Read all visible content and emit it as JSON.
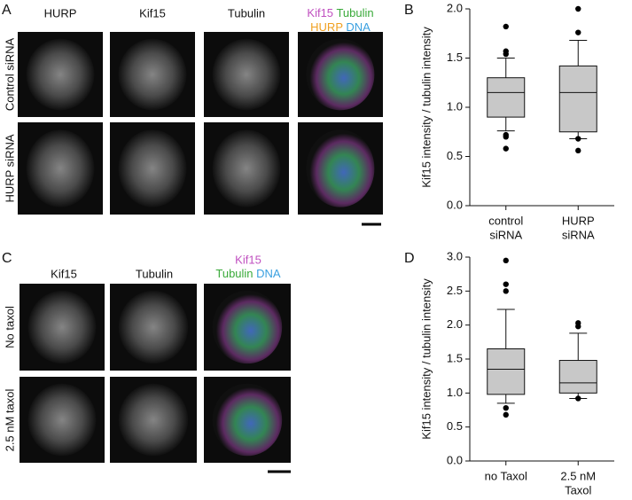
{
  "figure": {
    "panel_a": {
      "letter": "A",
      "columns": [
        "HURP",
        "Kif15",
        "Tubulin"
      ],
      "merge_top": [
        "Kif15",
        "Tubulin"
      ],
      "merge_bottom": [
        "HURP",
        "DNA"
      ],
      "rows": [
        "Control siRNA",
        "HURP siRNA"
      ]
    },
    "panel_c": {
      "letter": "C",
      "columns": [
        "Kif15",
        "Tubulin"
      ],
      "merge_top": [
        "Kif15"
      ],
      "merge_bottom": [
        "Tubulin",
        "DNA"
      ],
      "rows": [
        "No taxol",
        "2.5 nM taxol"
      ]
    },
    "letters": [
      "B",
      "D"
    ]
  },
  "chart_data": [
    {
      "type": "box",
      "ylabel": "Kif15 intensity / tubulin intensity",
      "categories": [
        [
          "control",
          "siRNA"
        ],
        [
          "HURP",
          "siRNA"
        ]
      ],
      "color": "#c8c8c8",
      "ylim": [
        0,
        2
      ],
      "yticks": [
        {
          "value": 0,
          "label": "0.0"
        },
        {
          "value": 0.5,
          "label": "0.5"
        },
        {
          "value": 1,
          "label": "1.0"
        },
        {
          "value": 1.5,
          "label": "1.5"
        },
        {
          "value": 2,
          "label": "2.0"
        }
      ],
      "boxes": [
        {
          "whisker_low": 0.76,
          "q1": 0.9,
          "median": 1.15,
          "q3": 1.3,
          "whisker_high": 1.5,
          "outliers": [
            1.82,
            1.57,
            1.54,
            0.72,
            0.7,
            0.58
          ]
        },
        {
          "whisker_low": 0.68,
          "q1": 0.75,
          "median": 1.15,
          "q3": 1.42,
          "whisker_high": 1.68,
          "outliers": [
            2.0,
            1.76,
            0.68,
            0.56
          ]
        }
      ]
    },
    {
      "type": "box",
      "ylabel": "Kif15 intensity / tubulin intensity",
      "categories": [
        [
          "no Taxol"
        ],
        [
          "2.5 nM",
          "Taxol"
        ]
      ],
      "color": "#c8c8c8",
      "ylim": [
        0,
        3
      ],
      "yticks": [
        {
          "value": 0,
          "label": "0.0"
        },
        {
          "value": 0.5,
          "label": "0.5"
        },
        {
          "value": 1,
          "label": "1.0"
        },
        {
          "value": 1.5,
          "label": "1.5"
        },
        {
          "value": 2,
          "label": "2.0"
        },
        {
          "value": 2.5,
          "label": "2.5"
        },
        {
          "value": 3,
          "label": "3.0"
        }
      ],
      "boxes": [
        {
          "whisker_low": 0.85,
          "q1": 0.98,
          "median": 1.35,
          "q3": 1.65,
          "whisker_high": 2.23,
          "outliers": [
            2.95,
            2.6,
            2.5,
            0.78,
            0.68
          ]
        },
        {
          "whisker_low": 0.92,
          "q1": 1.0,
          "median": 1.15,
          "q3": 1.48,
          "whisker_high": 1.88,
          "outliers": [
            2.03,
            1.98,
            0.92
          ]
        }
      ]
    }
  ]
}
